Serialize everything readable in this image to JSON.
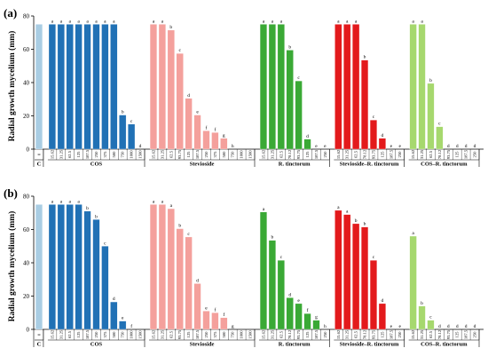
{
  "figure": {
    "ylabel": "Radial growth mycelium (mm)"
  },
  "chart_data": [
    {
      "type": "bar",
      "panel_label": "(a)",
      "ylabel": "Radial growth mycelium (mm)",
      "ylim": [
        0,
        80
      ],
      "yticks": [
        0,
        20,
        40,
        60,
        80
      ],
      "grid": false,
      "groups": [
        {
          "name": "C",
          "color": "#a9cde3",
          "categories": [
            "0"
          ],
          "values": [
            75
          ],
          "letters": [
            ""
          ]
        },
        {
          "name": "COS",
          "color": "#2171b5",
          "categories": [
            "15.62",
            "31.25",
            "62.5",
            "125",
            "187.5",
            "250",
            "375",
            "500",
            "750",
            "1000",
            "1500"
          ],
          "values": [
            75,
            75,
            75,
            75,
            75,
            75,
            75,
            75,
            20.5,
            15,
            0
          ],
          "letters": [
            "a",
            "a",
            "a",
            "a",
            "a",
            "a",
            "a",
            "a",
            "b",
            "c",
            "d"
          ]
        },
        {
          "name": "Stevioside",
          "color": "#f4a09c",
          "categories": [
            "15.62",
            "31.25",
            "62.5",
            "93.75",
            "125",
            "187.5",
            "250",
            "375",
            "500",
            "750",
            "1000",
            "1500"
          ],
          "values": [
            75,
            75,
            71.5,
            57.5,
            30.5,
            20.5,
            11,
            10,
            6.5,
            0,
            0,
            0
          ],
          "letters": [
            "a",
            "a",
            "b",
            "c",
            "d",
            "e",
            "f",
            "f",
            "g",
            "h",
            "",
            ""
          ]
        },
        {
          "name": "R. tinctorum",
          "color": "#3aa935",
          "categories": [
            "15.62",
            "31.25",
            "62.5",
            "78.12",
            "93.75",
            "125",
            "187.5",
            "250"
          ],
          "values": [
            75,
            75,
            75,
            59.5,
            41,
            6,
            0,
            0
          ],
          "letters": [
            "a",
            "a",
            "a",
            "b",
            "c",
            "d",
            "e",
            "e"
          ]
        },
        {
          "name": "Stevioside–R. tinctorum",
          "color": "#e31a1c",
          "categories": [
            "15.62",
            "31.25",
            "62.5",
            "78.12",
            "93.75",
            "125",
            "187.5",
            "250"
          ],
          "values": [
            75,
            75,
            75,
            53.5,
            17.5,
            6.5,
            0,
            0
          ],
          "letters": [
            "a",
            "a",
            "a",
            "b",
            "c",
            "d",
            "e",
            "e"
          ]
        },
        {
          "name": "COS–R. tinctorum",
          "color": "#a6d86e",
          "categories": [
            "15.62",
            "31.25",
            "62.5",
            "78.12",
            "93.75",
            "125",
            "187.5",
            "250"
          ],
          "values": [
            75,
            75,
            39.5,
            13.5,
            0,
            0,
            0,
            0
          ],
          "letters": [
            "a",
            "a",
            "b",
            "c",
            "d",
            "d",
            "d",
            "d"
          ]
        }
      ]
    },
    {
      "type": "bar",
      "panel_label": "(b)",
      "ylabel": "Radial growth mycelium (mm)",
      "ylim": [
        0,
        80
      ],
      "yticks": [
        0,
        20,
        40,
        60,
        80
      ],
      "grid": false,
      "groups": [
        {
          "name": "C",
          "color": "#a9cde3",
          "categories": [
            "0"
          ],
          "values": [
            75
          ],
          "letters": [
            ""
          ]
        },
        {
          "name": "COS",
          "color": "#2171b5",
          "categories": [
            "15.62",
            "31.25",
            "62.5",
            "125",
            "187.5",
            "250",
            "375",
            "500",
            "750",
            "1000",
            "1500"
          ],
          "values": [
            75,
            75,
            75,
            75,
            71,
            66,
            50,
            16.5,
            5,
            0,
            0
          ],
          "letters": [
            "a",
            "a",
            "a",
            "a",
            "b",
            "b",
            "c",
            "d",
            "e",
            "f",
            ""
          ]
        },
        {
          "name": "Stevioside",
          "color": "#f4a09c",
          "categories": [
            "15.62",
            "31.25",
            "62.5",
            "93.75",
            "125",
            "187.5",
            "250",
            "375",
            "500",
            "750",
            "1000",
            "1500"
          ],
          "values": [
            75,
            75,
            72.5,
            60.5,
            55.5,
            27.5,
            11,
            10,
            7,
            0,
            0,
            0
          ],
          "letters": [
            "a",
            "a",
            "a",
            "b",
            "c",
            "d",
            "e",
            "f",
            "f",
            "g",
            "",
            ""
          ]
        },
        {
          "name": "R. tinctorum",
          "color": "#3aa935",
          "categories": [
            "15.62",
            "31.25",
            "62.5",
            "78.12",
            "93.75",
            "125",
            "187.5",
            "250"
          ],
          "values": [
            70.5,
            53.5,
            41.5,
            19,
            15.5,
            9.5,
            5.5,
            0
          ],
          "letters": [
            "a",
            "b",
            "c",
            "d",
            "e",
            "f",
            "g",
            "h"
          ]
        },
        {
          "name": "Stevioside–R. tinctorum",
          "color": "#e31a1c",
          "categories": [
            "15.62",
            "31.25",
            "62.5",
            "78.12",
            "93.75",
            "125",
            "187.5",
            "250"
          ],
          "values": [
            71.5,
            69,
            63.5,
            61.5,
            41.5,
            15.5,
            0,
            0
          ],
          "letters": [
            "a",
            "a",
            "b",
            "b",
            "c",
            "d",
            "e",
            "e"
          ]
        },
        {
          "name": "COS–R. tinctorum",
          "color": "#a6d86e",
          "categories": [
            "15.62",
            "31.25",
            "62.5",
            "78.12",
            "93.75",
            "125",
            "187.5",
            "250"
          ],
          "values": [
            56,
            14,
            5.5,
            0,
            0,
            0,
            0,
            0
          ],
          "letters": [
            "a",
            "b",
            "c",
            "d",
            "d",
            "d",
            "d",
            "d"
          ]
        }
      ]
    }
  ]
}
